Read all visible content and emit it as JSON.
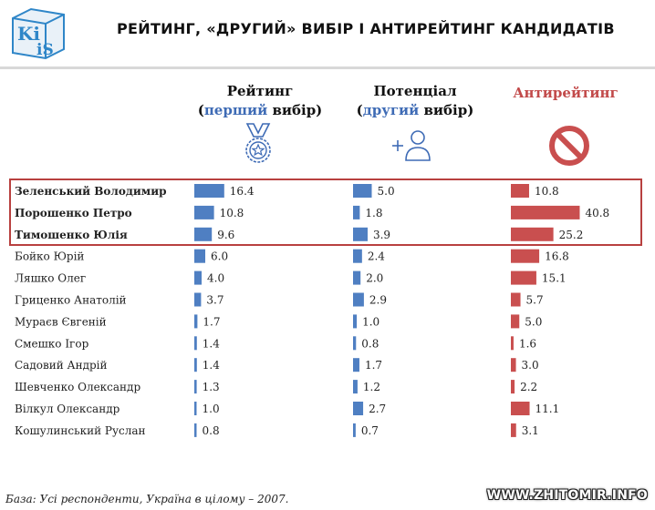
{
  "logo": {
    "top": "Ki",
    "bottom": "iS"
  },
  "title": "РЕЙТИНГ, «ДРУГИЙ» ВИБІР І АНТИРЕЙТИНГ КАНДИДАТІВ",
  "columns": {
    "rating": {
      "line1": "Рейтинг",
      "open": "(",
      "accent": "перший",
      "rest": " вибір)",
      "icon": "medal-icon"
    },
    "potential": {
      "line1": "Потенціал",
      "open": "(",
      "accent": "другий",
      "rest": " вибір)",
      "icon": "add-person-icon"
    },
    "anti": {
      "line1": "Антирейтинг",
      "icon": "prohibited-icon"
    }
  },
  "colors": {
    "blue": "#4f7fc2",
    "red": "#c94f4f",
    "accent": "#3e6bb5",
    "highlight_border": "#b8403f"
  },
  "chart_data": {
    "type": "bar",
    "title": "РЕЙТИНГ, «ДРУГИЙ» ВИБІР І АНТИРЕЙТИНГ КАНДИДАТІВ",
    "categories": [
      "Зеленський Володимир",
      "Порошенко Петро",
      "Тимошенко Юлія",
      "Бойко Юрій",
      "Ляшко Олег",
      "Гриценко Анатолій",
      "Мураєв Євгеній",
      "Смешко Ігор",
      "Садовий Андрій",
      "Шевченко Олександр",
      "Вілкул Олександр",
      "Кошулинський Руслан"
    ],
    "highlighted": [
      "Зеленський Володимир",
      "Порошенко Петро",
      "Тимошенко Юлія"
    ],
    "series": [
      {
        "name": "Рейтинг (перший вибір)",
        "values": [
          16.4,
          10.8,
          9.6,
          6.0,
          4.0,
          3.7,
          1.7,
          1.4,
          1.4,
          1.3,
          1.0,
          0.8
        ],
        "labels": [
          "16.4",
          "10.8",
          "9.6",
          "6.0",
          "4.0",
          "3.7",
          "1.7",
          "1.4",
          "1.4",
          "1.3",
          "1.0",
          "0.8"
        ]
      },
      {
        "name": "Потенціал (другий вибір)",
        "values": [
          5.0,
          1.8,
          3.9,
          2.4,
          2.0,
          2.9,
          1.0,
          0.8,
          1.7,
          1.2,
          2.7,
          0.7
        ],
        "labels": [
          "5.0",
          "1.8",
          "3.9",
          "2.4",
          "2.0",
          "2.9",
          "1.0",
          "0.8",
          "1.7",
          "1.2",
          "2.7",
          "0.7"
        ]
      },
      {
        "name": "Антирейтинг",
        "values": [
          10.8,
          40.8,
          25.2,
          16.8,
          15.1,
          5.7,
          5.0,
          1.6,
          3.0,
          2.2,
          11.1,
          3.1
        ],
        "labels": [
          "10.8",
          "40.8",
          "25.2",
          "16.8",
          "15.1",
          "5.7",
          "5.0",
          "1.6",
          "3.0",
          "2.2",
          "11.1",
          "3.1"
        ]
      }
    ]
  },
  "footnote": "База: Усі респонденти, Україна в цілому – 2007.",
  "watermark": "WWW.ZHITOMIR.INFO"
}
